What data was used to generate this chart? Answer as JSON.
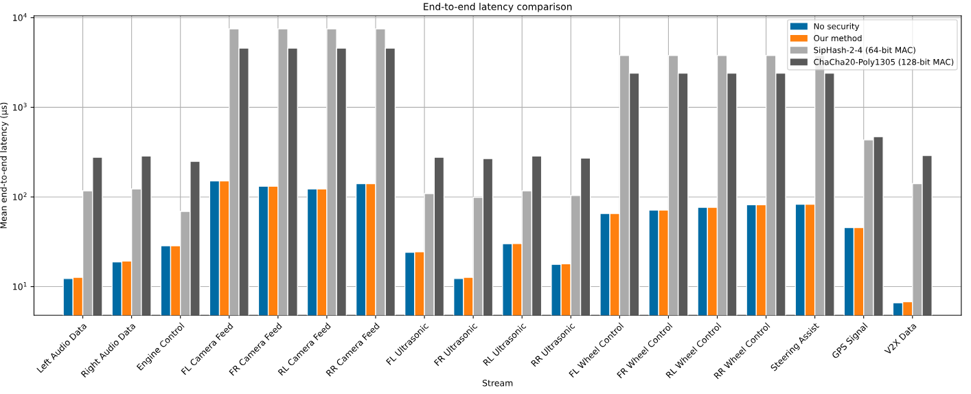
{
  "chart_data": {
    "type": "bar",
    "title": "End-to-end latency comparison",
    "xlabel": "Stream",
    "ylabel": "Mean end-to-end latency (µs)",
    "categories": [
      "Left Audio Data",
      "Right Audio Data",
      "Engine Control",
      "FL Camera Feed",
      "FR Camera Feed",
      "RL Camera Feed",
      "RR Camera Feed",
      "FL Ultrasonic",
      "FR Ultrasonic",
      "RL Ultrasonic",
      "RR Ultrasonic",
      "FL Wheel Control",
      "FR Wheel Control",
      "RL Wheel Control",
      "RR Wheel Control",
      "Steering Assist",
      "GPS Signal",
      "V2X Data"
    ],
    "series": [
      {
        "name": "No security",
        "color": "#006ba4",
        "values": [
          12.3,
          18.9,
          28.6,
          151,
          132,
          123,
          141,
          24.1,
          12.3,
          30.1,
          17.7,
          65.5,
          71.4,
          76.6,
          82,
          83,
          45.6,
          6.6
        ]
      },
      {
        "name": "Our method",
        "color": "#ff800e",
        "values": [
          12.7,
          19.3,
          28.6,
          151,
          132,
          123,
          141,
          24.5,
          12.7,
          30.3,
          18,
          65.5,
          71.4,
          76.6,
          82,
          83,
          45.6,
          6.8
        ]
      },
      {
        "name": "SipHash-2-4 (64-bit MAC)",
        "color": "#ababab",
        "values": [
          117,
          123,
          69,
          7500,
          7500,
          7500,
          7500,
          109,
          99,
          117,
          104,
          3780,
          3780,
          3780,
          3780,
          3780,
          433,
          141
        ]
      },
      {
        "name": "ChaCha20-Poly1305 (128-bit MAC)",
        "color": "#595959",
        "values": [
          277,
          286,
          250,
          4570,
          4570,
          4570,
          4570,
          277,
          268,
          286,
          272,
          2410,
          2410,
          2410,
          2410,
          2410,
          470,
          290
        ]
      }
    ],
    "log": "y",
    "ylim": [
      4.8,
      10500
    ],
    "yticks": [
      {
        "value": 10,
        "label": "10$^{1}$"
      },
      {
        "value": 100,
        "label": "10$^{2}$"
      },
      {
        "value": 1000,
        "label": "10$^{3}$"
      },
      {
        "value": 10000,
        "label": "10$^{4}$"
      }
    ],
    "grid": true,
    "legend": "top right"
  }
}
